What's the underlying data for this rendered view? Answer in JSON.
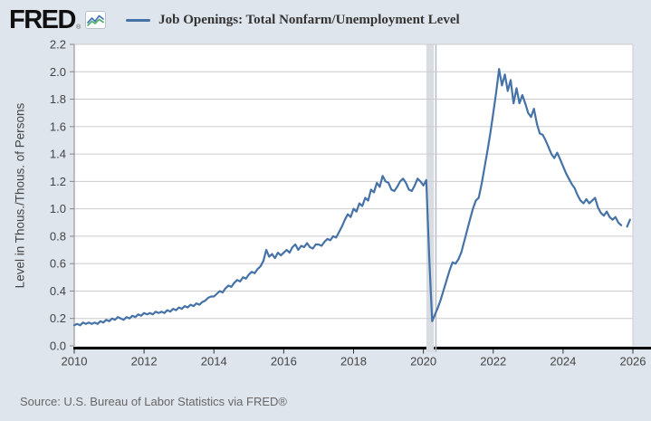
{
  "header": {
    "logo_text": "FRED",
    "registered_mark": "®",
    "legend_label": "Job Openings: Total Nonfarm/Unemployment Level"
  },
  "y_axis_title": "Level in Thous./Thous. of Persons",
  "source_note": "Source: U.S. Bureau of Labor Statistics via FRED®",
  "colors": {
    "background": "#dfe5ed",
    "plot_background": "#ffffff",
    "line": "#4572a7",
    "gridline": "#cccccc",
    "recession_band": "#d9dde3",
    "recession_marker_line": "#b2b8c1",
    "axis_line": "#000000",
    "tick_text": "#434343",
    "logo_icon_blue": "#4173b3",
    "logo_icon_green": "#52b06e"
  },
  "chart_data": {
    "type": "line",
    "title": "Job Openings: Total Nonfarm/Unemployment Level",
    "ylabel": "Level in Thous./Thous. of Persons",
    "xlabel": "",
    "legend_position": "top",
    "grid": true,
    "xlim": [
      2010,
      2026
    ],
    "ylim": [
      0.0,
      2.2
    ],
    "x_tick_labels": [
      2010,
      2012,
      2014,
      2016,
      2018,
      2020,
      2022,
      2024,
      2026
    ],
    "y_ticks": [
      0.0,
      0.2,
      0.4,
      0.6,
      0.8,
      1.0,
      1.2,
      1.4,
      1.6,
      1.8,
      2.0,
      2.2
    ],
    "frequency": "monthly",
    "start": "2010-01",
    "end": "2025-12",
    "data_gap": "2025-10",
    "recession_band": {
      "start": "2020-02",
      "end": "2020-04"
    },
    "line_color": "#4572a7",
    "values": [
      0.15,
      0.16,
      0.15,
      0.17,
      0.16,
      0.17,
      0.16,
      0.17,
      0.16,
      0.18,
      0.17,
      0.19,
      0.18,
      0.2,
      0.19,
      0.21,
      0.2,
      0.19,
      0.21,
      0.2,
      0.22,
      0.21,
      0.23,
      0.22,
      0.24,
      0.23,
      0.24,
      0.23,
      0.25,
      0.24,
      0.25,
      0.24,
      0.26,
      0.25,
      0.27,
      0.26,
      0.28,
      0.27,
      0.29,
      0.28,
      0.3,
      0.29,
      0.31,
      0.3,
      0.32,
      0.33,
      0.35,
      0.36,
      0.36,
      0.38,
      0.4,
      0.39,
      0.42,
      0.44,
      0.43,
      0.46,
      0.48,
      0.47,
      0.5,
      0.49,
      0.52,
      0.54,
      0.53,
      0.56,
      0.58,
      0.62,
      0.7,
      0.65,
      0.67,
      0.64,
      0.68,
      0.66,
      0.68,
      0.7,
      0.68,
      0.72,
      0.74,
      0.7,
      0.73,
      0.72,
      0.75,
      0.72,
      0.71,
      0.74,
      0.74,
      0.73,
      0.76,
      0.78,
      0.77,
      0.8,
      0.79,
      0.83,
      0.87,
      0.92,
      0.96,
      0.94,
      1.0,
      0.98,
      1.04,
      1.02,
      1.08,
      1.06,
      1.14,
      1.12,
      1.19,
      1.16,
      1.24,
      1.2,
      1.19,
      1.14,
      1.13,
      1.16,
      1.2,
      1.22,
      1.19,
      1.14,
      1.13,
      1.17,
      1.22,
      1.2,
      1.17,
      1.21,
      0.64,
      0.18,
      0.23,
      0.28,
      0.34,
      0.41,
      0.48,
      0.55,
      0.61,
      0.6,
      0.63,
      0.68,
      0.76,
      0.84,
      0.92,
      1.0,
      1.06,
      1.08,
      1.18,
      1.3,
      1.42,
      1.55,
      1.7,
      1.85,
      2.02,
      1.9,
      1.98,
      1.86,
      1.94,
      1.77,
      1.88,
      1.77,
      1.83,
      1.77,
      1.7,
      1.67,
      1.73,
      1.62,
      1.55,
      1.54,
      1.5,
      1.45,
      1.4,
      1.37,
      1.41,
      1.36,
      1.31,
      1.26,
      1.22,
      1.18,
      1.15,
      1.1,
      1.06,
      1.04,
      1.07,
      1.04,
      1.06,
      1.08,
      1.01,
      0.97,
      0.95,
      0.98,
      0.94,
      0.92,
      0.94,
      0.9,
      0.88,
      null,
      0.87,
      0.92
    ]
  }
}
